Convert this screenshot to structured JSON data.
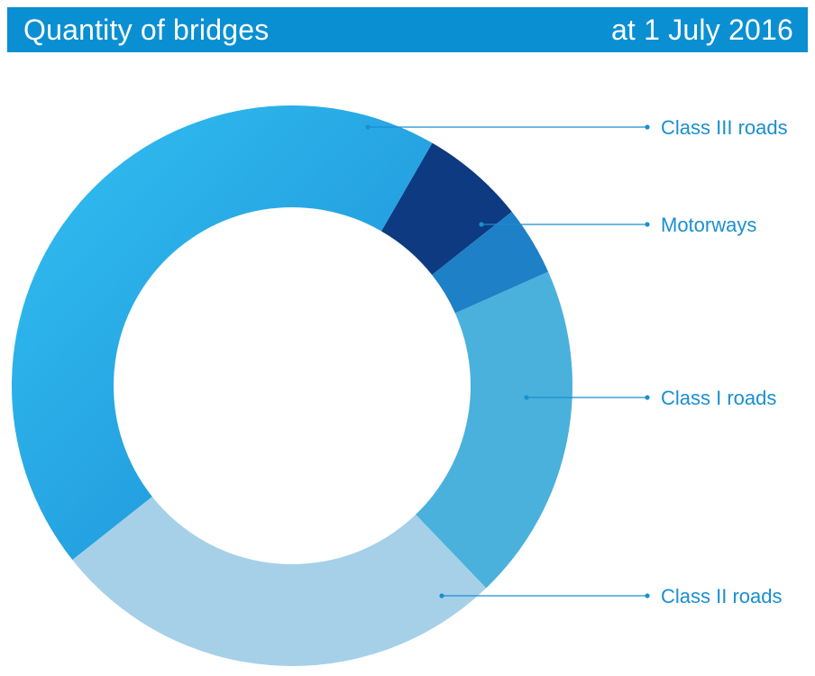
{
  "header": {
    "title": "Quantity of bridges",
    "date": "at 1 July 2016"
  },
  "chart_data": {
    "type": "pie",
    "donut": true,
    "title": "Quantity of bridges",
    "subtitle": "at 1 July 2016",
    "start_angle_deg": 90,
    "direction": "clockwise",
    "slices": [
      {
        "name": "Motorways",
        "value": 6,
        "color": "#0d3a80"
      },
      {
        "name": "",
        "value": 4,
        "color": "#1e80c7"
      },
      {
        "name": "Class I roads",
        "value": 19.5,
        "color": "#49b1dc"
      },
      {
        "name": "Class II roads",
        "value": 26.5,
        "color": "#a6d0e8"
      },
      {
        "name": "Class III roads",
        "value": 44,
        "color": "#2aa5e2"
      }
    ],
    "legend_placement": "right",
    "leader_line_color": "#1a8fd0"
  }
}
